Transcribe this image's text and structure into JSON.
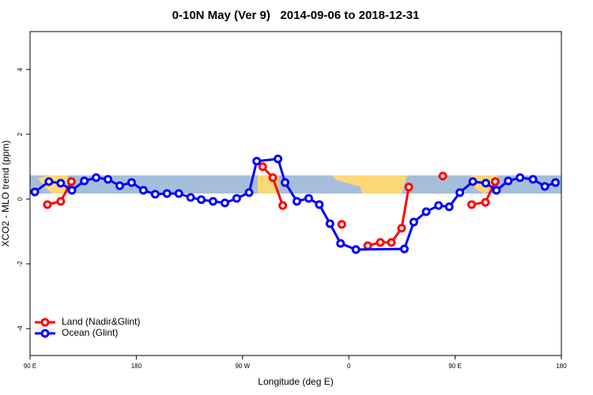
{
  "chart_data": {
    "type": "line",
    "title": "0-10N May (Ver 9)   2014-09-06 to 2018-12-31",
    "xlabel": "Longitude (deg E)",
    "ylabel": "XCO2 - MLO trend (ppm)",
    "xlim": [
      90,
      540
    ],
    "xticks": [
      {
        "value": 90,
        "label": "90 E"
      },
      180,
      {
        "value": 270,
        "label": "90 W"
      },
      {
        "value": 360,
        "label": "0"
      },
      {
        "value": 450,
        "label": "90 E"
      },
      {
        "value": 540,
        "label": "180"
      }
    ],
    "ylim": [
      -4.83,
      5.17
    ],
    "yticks": [
      -4,
      -2,
      0,
      2,
      4
    ],
    "legend": "bottom-left",
    "series": [
      {
        "name": "Land (Nadir&Glint)",
        "color": "#ff0000",
        "x": [
          104.7,
          116,
          125,
          null,
          287,
          295.6,
          304,
          null,
          354,
          null,
          376,
          386.7,
          396,
          404.7,
          410.8,
          null,
          439.6,
          null,
          464,
          475.7,
          484
        ],
        "values": [
          -0.17,
          -0.07,
          0.54,
          null,
          1.0,
          0.66,
          -0.2,
          null,
          -0.78,
          null,
          -1.44,
          -1.34,
          -1.34,
          -0.9,
          0.37,
          null,
          0.71,
          null,
          -0.17,
          -0.1,
          0.54
        ]
      },
      {
        "name": "Ocean (Glint)",
        "color": "#0000ff",
        "x": [
          94,
          106,
          116,
          125.5,
          136,
          146,
          156,
          166,
          176,
          186,
          196,
          206,
          216,
          226,
          235,
          245,
          255,
          265,
          275.5,
          282,
          300,
          306,
          316,
          326,
          335,
          344,
          353,
          366,
          407,
          415,
          425.5,
          436,
          445,
          454,
          465,
          476,
          485,
          495,
          505,
          516,
          526,
          535
        ],
        "values": [
          0.22,
          0.54,
          0.49,
          0.27,
          0.56,
          0.66,
          0.61,
          0.41,
          0.51,
          0.27,
          0.15,
          0.17,
          0.17,
          0.05,
          -0.02,
          -0.07,
          -0.12,
          0.02,
          0.2,
          1.17,
          1.24,
          0.51,
          -0.07,
          0.02,
          -0.17,
          -0.76,
          -1.37,
          -1.56,
          -1.54,
          -0.71,
          -0.39,
          -0.2,
          -0.24,
          0.2,
          0.54,
          0.49,
          0.27,
          0.56,
          0.66,
          0.61,
          0.39,
          0.51
        ]
      }
    ]
  }
}
